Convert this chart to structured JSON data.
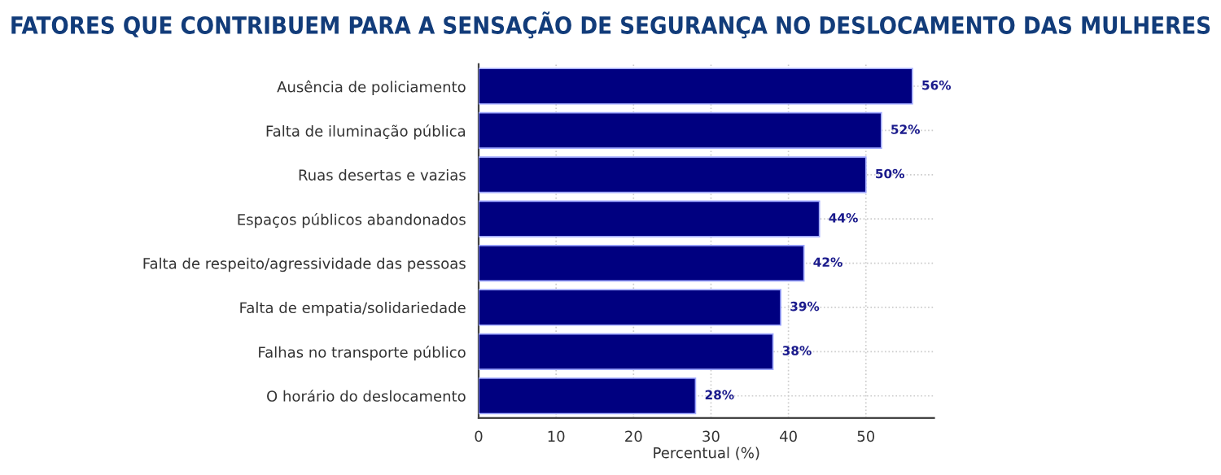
{
  "chart_data": {
    "type": "bar",
    "orientation": "horizontal",
    "title": "FATORES QUE CONTRIBUEM PARA A SENSAÇÃO DE SEGURANÇA NO DESLOCAMENTO DAS MULHERES",
    "xlabel": "Percentual (%)",
    "categories": [
      "Ausência de policiamento",
      "Falta de iluminação pública",
      "Ruas desertas e vazias",
      "Espaços públicos abandonados",
      "Falta de respeito/agressividade das pessoas",
      "Falta de empatia/solidariedade",
      "Falhas no transporte público",
      "O horário do deslocamento"
    ],
    "values": [
      56,
      52,
      50,
      44,
      42,
      39,
      38,
      28
    ],
    "value_labels": [
      "56%",
      "52%",
      "50%",
      "44%",
      "42%",
      "39%",
      "38%",
      "28%"
    ],
    "color": "#000080",
    "xlim": [
      0,
      58.8
    ],
    "xticks": [
      0,
      10,
      20,
      30,
      40,
      50
    ],
    "grid": true
  }
}
